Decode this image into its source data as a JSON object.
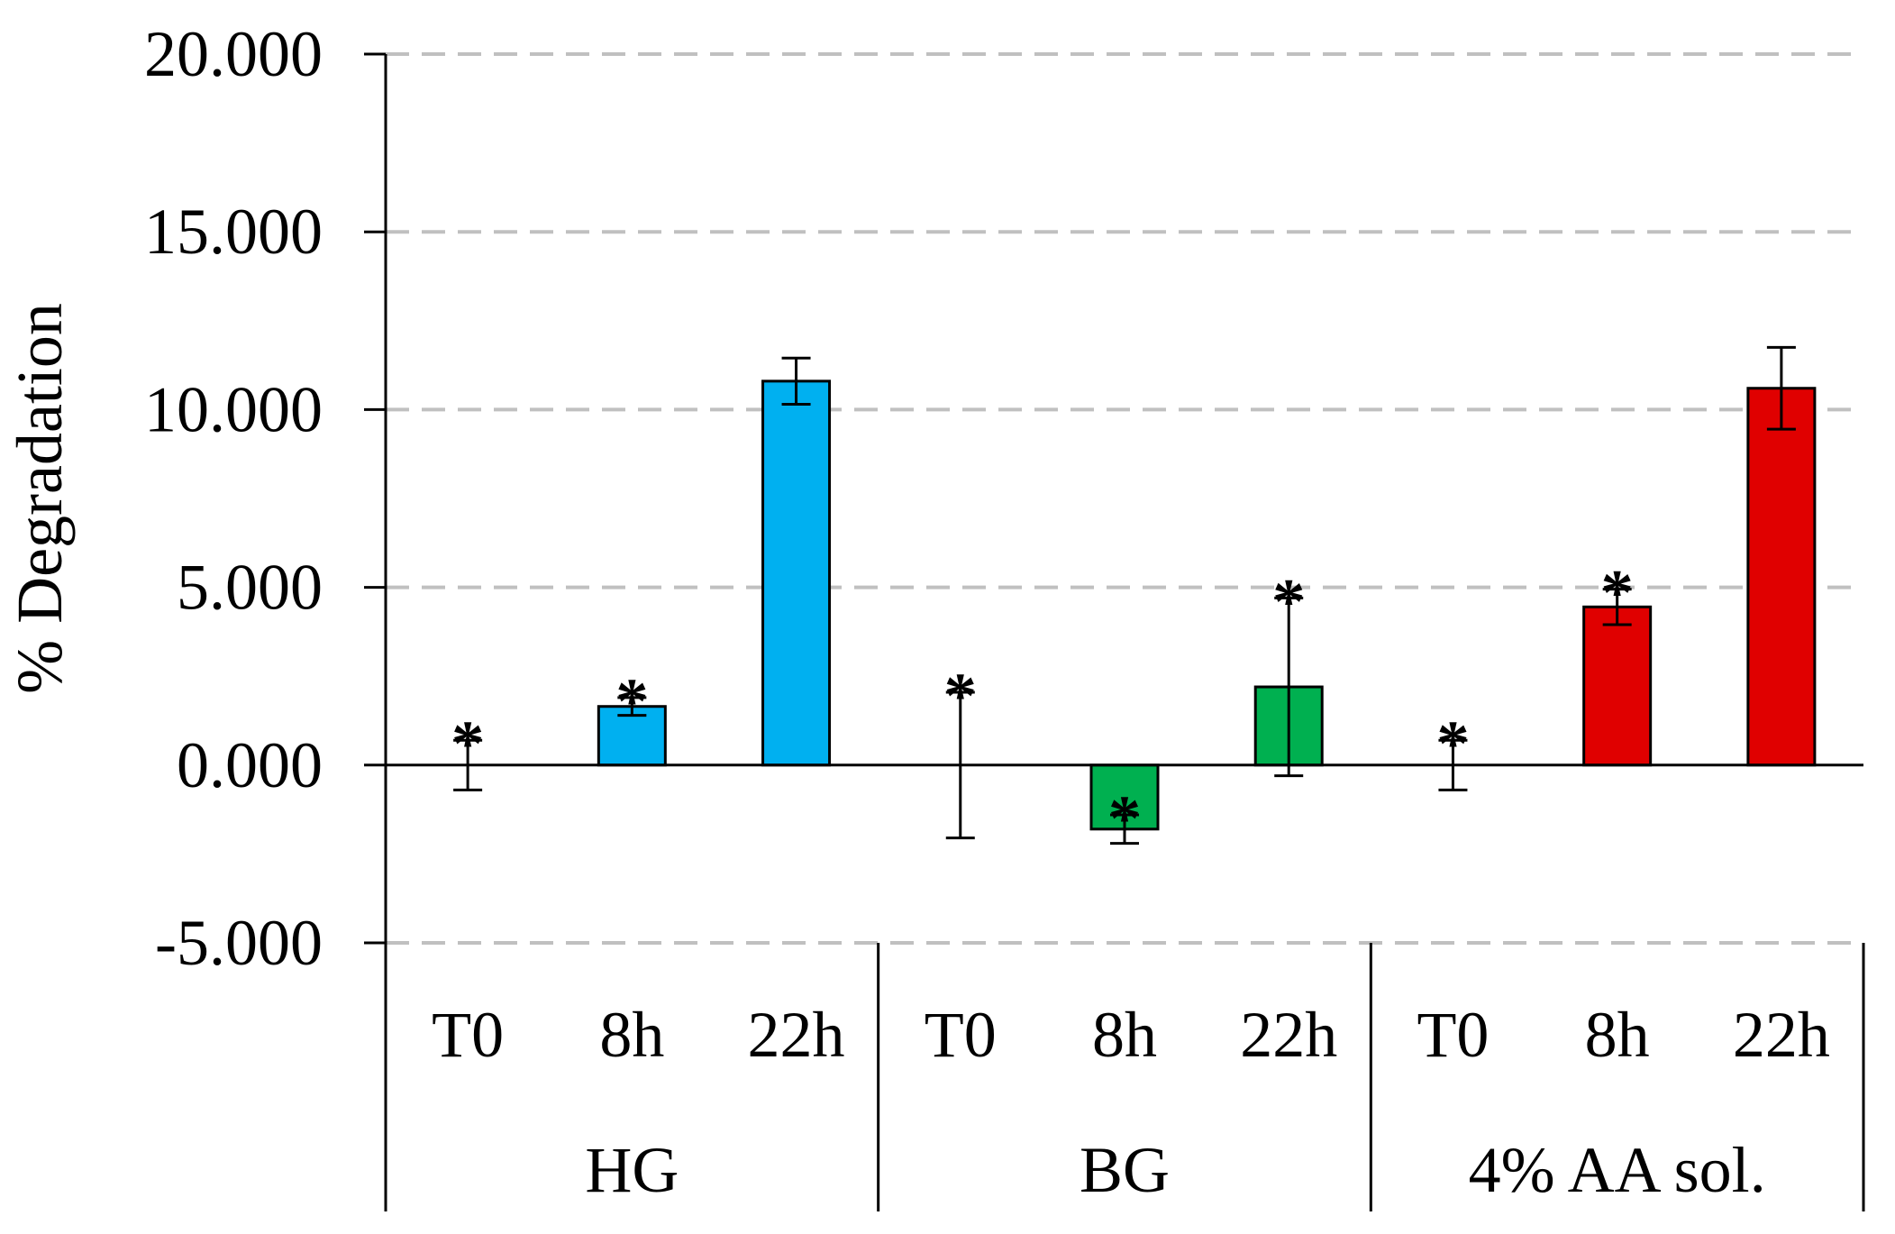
{
  "chart_data": {
    "type": "bar",
    "title": "",
    "xlabel": "",
    "ylabel": "% Degradation",
    "ylim": [
      -5,
      20
    ],
    "yticks": [
      -5,
      0,
      5,
      10,
      15,
      20
    ],
    "ytick_labels": [
      "-5.000",
      "0.000",
      "5.000",
      "10.000",
      "15.000",
      "20.000"
    ],
    "grid": "horizontal dashed",
    "groups": [
      {
        "name": "HG",
        "color": "#00b0f0"
      },
      {
        "name": "BG",
        "color": "#00b050"
      },
      {
        "name": "4% AA sol.",
        "color": "#e00000"
      }
    ],
    "bars": [
      {
        "group": "HG",
        "category": "T0",
        "value": 0.0,
        "error": 0.7,
        "marker": "*"
      },
      {
        "group": "HG",
        "category": "8h",
        "value": 1.65,
        "error": 0.25,
        "marker": "*"
      },
      {
        "group": "HG",
        "category": "22h",
        "value": 10.8,
        "error": 0.65,
        "marker": ""
      },
      {
        "group": "BG",
        "category": "T0",
        "value": 0.0,
        "error": 2.05,
        "marker": "*"
      },
      {
        "group": "BG",
        "category": "8h",
        "value": -1.8,
        "error": 0.4,
        "marker": "*"
      },
      {
        "group": "BG",
        "category": "22h",
        "value": 2.2,
        "error": 2.5,
        "marker": "*"
      },
      {
        "group": "4% AA sol.",
        "category": "T0",
        "value": 0.0,
        "error": 0.7,
        "marker": "*"
      },
      {
        "group": "4% AA sol.",
        "category": "8h",
        "value": 4.45,
        "error": 0.5,
        "marker": "*"
      },
      {
        "group": "4% AA sol.",
        "category": "22h",
        "value": 10.6,
        "error": 1.15,
        "marker": ""
      }
    ]
  }
}
